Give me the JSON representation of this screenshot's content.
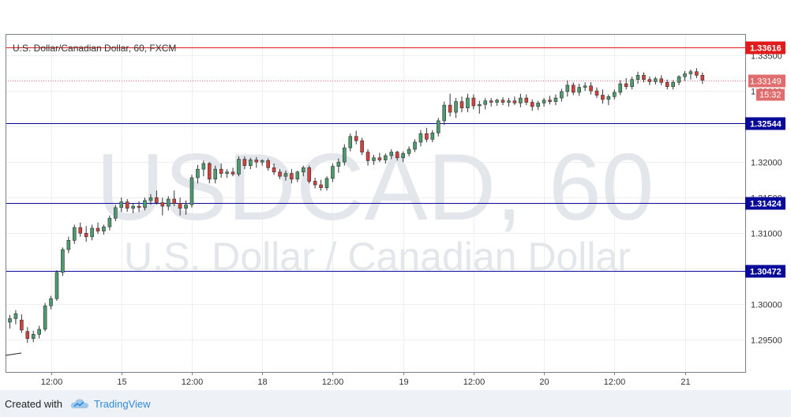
{
  "chart_data": {
    "type": "candlestick",
    "title": "U.S. Dollar/Canadian Dollar, 60, FXCM",
    "watermark": {
      "symbol": "USDCAD, 60",
      "name": "U.S. Dollar / Canadian Dollar"
    },
    "ylim": [
      1.2905,
      1.338
    ],
    "y_ticks": [
      "1.29500",
      "1.30000",
      "1.30500",
      "1.31000",
      "1.31500",
      "1.32000",
      "1.32500",
      "1.33000",
      "1.33500"
    ],
    "x_ticks": [
      {
        "label": "12:00",
        "index": 7
      },
      {
        "label": "15",
        "index": 19
      },
      {
        "label": "12:00",
        "index": 31
      },
      {
        "label": "18",
        "index": 43
      },
      {
        "label": "12:00",
        "index": 55
      },
      {
        "label": "19",
        "index": 67
      },
      {
        "label": "12:00",
        "index": 79
      },
      {
        "label": "20",
        "index": 91
      },
      {
        "label": "12:00",
        "index": 103
      },
      {
        "label": "21",
        "index": 115
      }
    ],
    "levels": [
      {
        "value": 1.33616,
        "label": "1.33616",
        "color": "#e11b1b"
      },
      {
        "value": 1.32544,
        "label": "1.32544",
        "color": "#0a0a9a"
      },
      {
        "value": 1.31424,
        "label": "1.31424",
        "color": "#0a0a9a"
      },
      {
        "value": 1.30472,
        "label": "1.30472",
        "color": "#0a0a9a"
      }
    ],
    "last_price": {
      "value": 1.33149,
      "label": "1.33149",
      "countdown": "15:32",
      "color": "#e06d6d"
    },
    "colors": {
      "up": "#4c9b6e",
      "down": "#d4413c",
      "wick": "#333333",
      "grid": "#eeeeee",
      "axis": "#7a8087"
    },
    "ohlc": [
      [
        1.2975,
        1.2985,
        1.2966,
        1.298
      ],
      [
        1.298,
        1.2992,
        1.2972,
        1.2987
      ],
      [
        1.2978,
        1.2986,
        1.296,
        1.2964
      ],
      [
        1.2962,
        1.2968,
        1.2946,
        1.2952
      ],
      [
        1.2952,
        1.2963,
        1.2947,
        1.2958
      ],
      [
        1.2958,
        1.297,
        1.2952,
        1.2965
      ],
      [
        1.2965,
        1.3002,
        1.2962,
        1.2998
      ],
      [
        1.2998,
        1.3012,
        1.2993,
        1.3008
      ],
      [
        1.3008,
        1.3048,
        1.3005,
        1.3045
      ],
      [
        1.3045,
        1.308,
        1.304,
        1.3077
      ],
      [
        1.3077,
        1.3095,
        1.3072,
        1.309
      ],
      [
        1.309,
        1.3112,
        1.3085,
        1.3108
      ],
      [
        1.3108,
        1.3115,
        1.3095,
        1.31
      ],
      [
        1.31,
        1.311,
        1.3088,
        1.3095
      ],
      [
        1.3095,
        1.3112,
        1.309,
        1.3107
      ],
      [
        1.3107,
        1.3115,
        1.3099,
        1.3103
      ],
      [
        1.3103,
        1.3112,
        1.3098,
        1.3109
      ],
      [
        1.3109,
        1.3125,
        1.3104,
        1.3121
      ],
      [
        1.3121,
        1.314,
        1.3117,
        1.3136
      ],
      [
        1.3136,
        1.315,
        1.313,
        1.3144
      ],
      [
        1.3144,
        1.3148,
        1.313,
        1.3135
      ],
      [
        1.3135,
        1.3142,
        1.3128,
        1.3138
      ],
      [
        1.3138,
        1.3145,
        1.313,
        1.3136
      ],
      [
        1.3136,
        1.315,
        1.3132,
        1.3146
      ],
      [
        1.3146,
        1.3155,
        1.314,
        1.315
      ],
      [
        1.315,
        1.316,
        1.314,
        1.3143
      ],
      [
        1.3143,
        1.315,
        1.3125,
        1.3138
      ],
      [
        1.3138,
        1.3152,
        1.3132,
        1.3148
      ],
      [
        1.3148,
        1.316,
        1.3138,
        1.3142
      ],
      [
        1.3142,
        1.315,
        1.3125,
        1.3135
      ],
      [
        1.3135,
        1.3146,
        1.3126,
        1.314
      ],
      [
        1.314,
        1.3182,
        1.3136,
        1.3178
      ],
      [
        1.3178,
        1.3196,
        1.317,
        1.319
      ],
      [
        1.319,
        1.3202,
        1.318,
        1.3198
      ],
      [
        1.3198,
        1.32,
        1.317,
        1.3176
      ],
      [
        1.3176,
        1.3195,
        1.317,
        1.319
      ],
      [
        1.319,
        1.3198,
        1.3178,
        1.3184
      ],
      [
        1.3184,
        1.319,
        1.3178,
        1.3186
      ],
      [
        1.3186,
        1.3192,
        1.318,
        1.3183
      ],
      [
        1.3183,
        1.3208,
        1.318,
        1.3204
      ],
      [
        1.3204,
        1.3208,
        1.319,
        1.3195
      ],
      [
        1.3195,
        1.3206,
        1.319,
        1.3203
      ],
      [
        1.3203,
        1.3207,
        1.3192,
        1.32
      ],
      [
        1.32,
        1.3204,
        1.3195,
        1.3202
      ],
      [
        1.3202,
        1.3205,
        1.3188,
        1.3192
      ],
      [
        1.3192,
        1.3198,
        1.3182,
        1.3186
      ],
      [
        1.3186,
        1.319,
        1.3176,
        1.318
      ],
      [
        1.318,
        1.3188,
        1.3174,
        1.3184
      ],
      [
        1.3184,
        1.319,
        1.317,
        1.3176
      ],
      [
        1.3176,
        1.3188,
        1.3172,
        1.3186
      ],
      [
        1.3186,
        1.3195,
        1.318,
        1.3192
      ],
      [
        1.3192,
        1.3195,
        1.317,
        1.3173
      ],
      [
        1.3173,
        1.3178,
        1.3163,
        1.3168
      ],
      [
        1.3168,
        1.3175,
        1.316,
        1.3164
      ],
      [
        1.3164,
        1.318,
        1.316,
        1.3177
      ],
      [
        1.3177,
        1.3198,
        1.3172,
        1.3194
      ],
      [
        1.3194,
        1.3205,
        1.3185,
        1.32
      ],
      [
        1.32,
        1.3225,
        1.3195,
        1.322
      ],
      [
        1.322,
        1.324,
        1.3215,
        1.3236
      ],
      [
        1.3236,
        1.3244,
        1.3225,
        1.323
      ],
      [
        1.323,
        1.3234,
        1.321,
        1.3214
      ],
      [
        1.3214,
        1.3218,
        1.3195,
        1.3202
      ],
      [
        1.3202,
        1.321,
        1.3196,
        1.3206
      ],
      [
        1.3206,
        1.3213,
        1.32,
        1.3203
      ],
      [
        1.3203,
        1.3212,
        1.3198,
        1.3209
      ],
      [
        1.3209,
        1.3218,
        1.3204,
        1.3214
      ],
      [
        1.3214,
        1.3216,
        1.3202,
        1.3206
      ],
      [
        1.3206,
        1.3215,
        1.32,
        1.3212
      ],
      [
        1.3212,
        1.3222,
        1.3208,
        1.3218
      ],
      [
        1.3218,
        1.3232,
        1.3214,
        1.3228
      ],
      [
        1.3228,
        1.3245,
        1.3222,
        1.324
      ],
      [
        1.324,
        1.3248,
        1.3228,
        1.3232
      ],
      [
        1.3232,
        1.3245,
        1.3228,
        1.3241
      ],
      [
        1.3241,
        1.3262,
        1.3236,
        1.3258
      ],
      [
        1.3258,
        1.3285,
        1.3252,
        1.328
      ],
      [
        1.328,
        1.3296,
        1.3264,
        1.327
      ],
      [
        1.327,
        1.329,
        1.3262,
        1.3285
      ],
      [
        1.3285,
        1.3292,
        1.327,
        1.3276
      ],
      [
        1.3276,
        1.3296,
        1.327,
        1.329
      ],
      [
        1.329,
        1.3295,
        1.3274,
        1.3279
      ],
      [
        1.3279,
        1.3286,
        1.3268,
        1.3281
      ],
      [
        1.3281,
        1.329,
        1.3274,
        1.3286
      ],
      [
        1.3286,
        1.329,
        1.3278,
        1.3284
      ],
      [
        1.3284,
        1.3289,
        1.3279,
        1.3287
      ],
      [
        1.3287,
        1.3291,
        1.328,
        1.3284
      ],
      [
        1.3284,
        1.329,
        1.3278,
        1.3286
      ],
      [
        1.3286,
        1.3292,
        1.328,
        1.3283
      ],
      [
        1.3283,
        1.3296,
        1.3277,
        1.329
      ],
      [
        1.329,
        1.3295,
        1.328,
        1.3284
      ],
      [
        1.3284,
        1.3288,
        1.3272,
        1.3278
      ],
      [
        1.3278,
        1.3286,
        1.3273,
        1.3283
      ],
      [
        1.3283,
        1.329,
        1.3278,
        1.3287
      ],
      [
        1.3287,
        1.3293,
        1.3281,
        1.3285
      ],
      [
        1.3285,
        1.3295,
        1.328,
        1.329
      ],
      [
        1.329,
        1.3303,
        1.3285,
        1.3299
      ],
      [
        1.3299,
        1.3315,
        1.3292,
        1.3308
      ],
      [
        1.3308,
        1.3312,
        1.3294,
        1.3298
      ],
      [
        1.3298,
        1.331,
        1.3293,
        1.3305
      ],
      [
        1.3305,
        1.3312,
        1.33,
        1.3307
      ],
      [
        1.3307,
        1.3312,
        1.3295,
        1.33
      ],
      [
        1.33,
        1.3305,
        1.329,
        1.3294
      ],
      [
        1.3294,
        1.3302,
        1.3282,
        1.3288
      ],
      [
        1.3288,
        1.3295,
        1.328,
        1.3292
      ],
      [
        1.3292,
        1.3302,
        1.3288,
        1.3298
      ],
      [
        1.3298,
        1.3315,
        1.3294,
        1.331
      ],
      [
        1.331,
        1.3318,
        1.3302,
        1.3306
      ],
      [
        1.3306,
        1.332,
        1.3302,
        1.3316
      ],
      [
        1.3316,
        1.3327,
        1.331,
        1.3322
      ],
      [
        1.3322,
        1.3326,
        1.3312,
        1.3316
      ],
      [
        1.3316,
        1.332,
        1.3308,
        1.3313
      ],
      [
        1.3313,
        1.332,
        1.3309,
        1.3317
      ],
      [
        1.3317,
        1.3322,
        1.3308,
        1.3312
      ],
      [
        1.3312,
        1.3316,
        1.3302,
        1.3306
      ],
      [
        1.3306,
        1.3315,
        1.3302,
        1.3312
      ],
      [
        1.3312,
        1.3322,
        1.3308,
        1.332
      ],
      [
        1.332,
        1.3328,
        1.3314,
        1.3324
      ],
      [
        1.3324,
        1.333,
        1.3316,
        1.3327
      ],
      [
        1.3327,
        1.3332,
        1.3318,
        1.3322
      ],
      [
        1.3322,
        1.3326,
        1.331,
        1.3315
      ]
    ]
  },
  "footer": {
    "created_label": "Created with",
    "brand": "TradingView",
    "brand_color": "#2f8bd8"
  }
}
